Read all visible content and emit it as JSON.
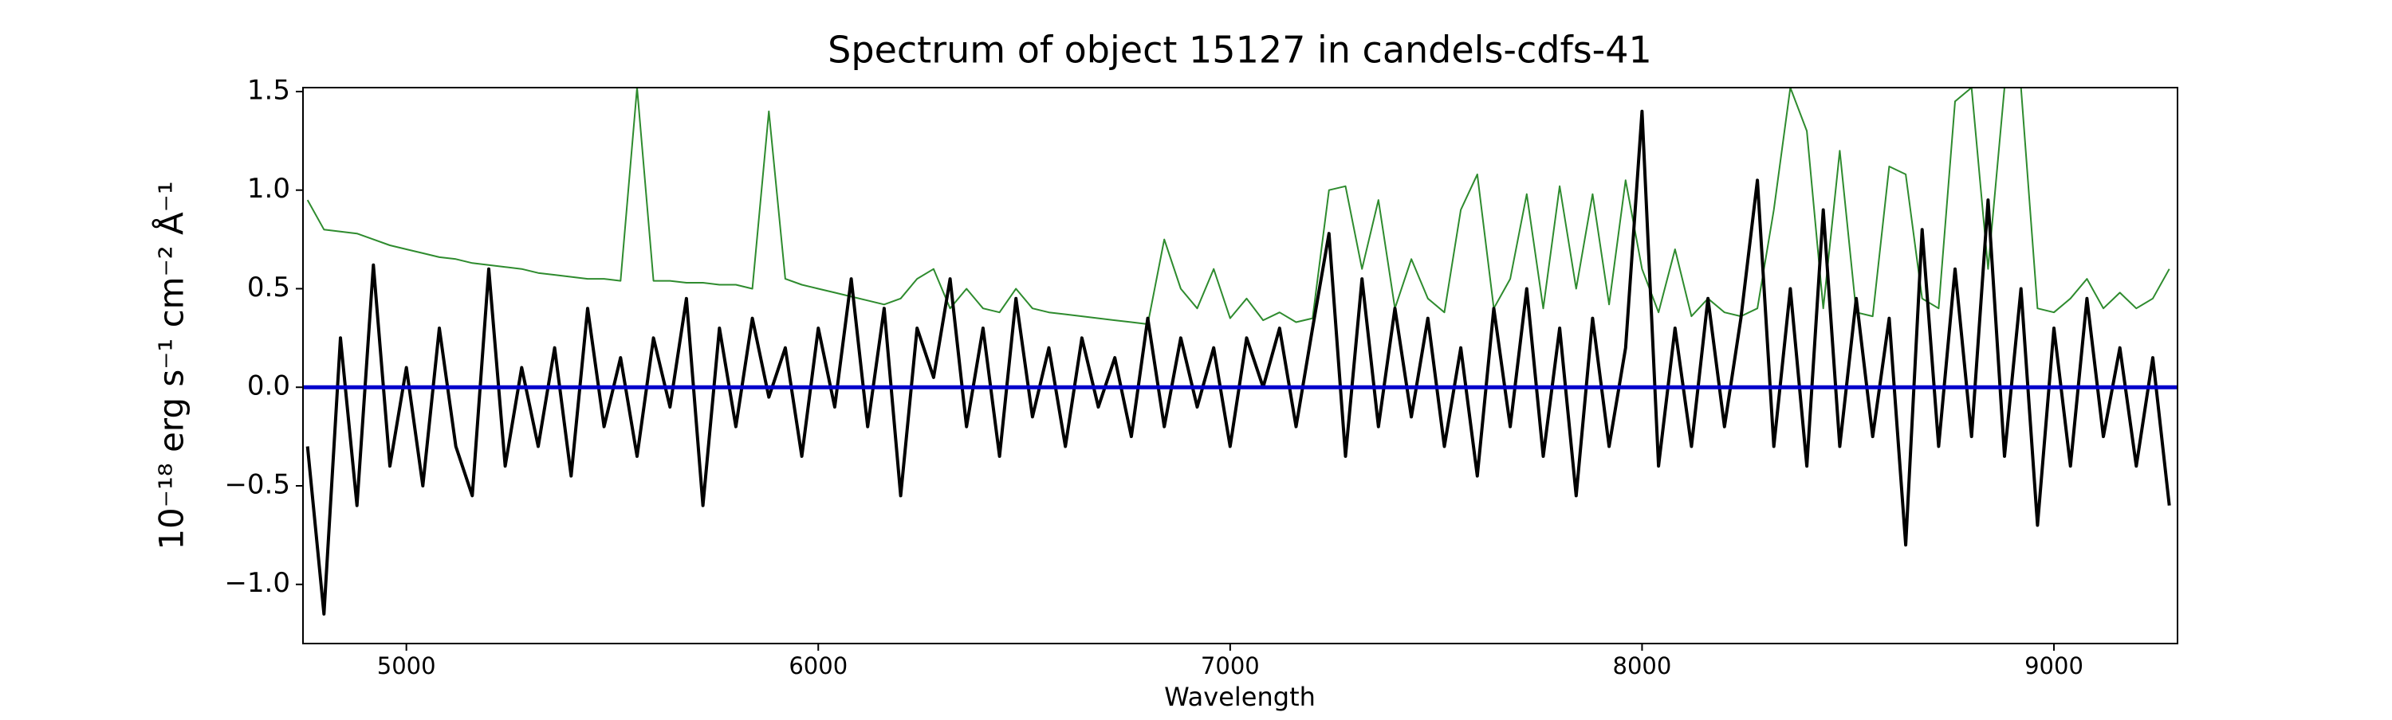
{
  "chart_data": {
    "type": "line",
    "title": "Spectrum of object 15127 in candels-cdfs-41",
    "xlabel": "Wavelength",
    "ylabel": "10⁻¹⁸ erg s⁻¹ cm⁻² Å⁻¹",
    "xlim": [
      4749,
      9300
    ],
    "ylim": [
      -1.3,
      1.52
    ],
    "xticks": [
      5000,
      6000,
      7000,
      8000,
      9000
    ],
    "yticks": [
      {
        "value": -1.0,
        "label": "−1.0"
      },
      {
        "value": -0.5,
        "label": "−0.5"
      },
      {
        "value": 0,
        "label": "0.0"
      },
      {
        "value": 0.5,
        "label": "0.5"
      },
      {
        "value": 1.0,
        "label": "1.0"
      },
      {
        "value": 1.5,
        "label": "1.5"
      }
    ],
    "x": [
      4760,
      4800,
      4840,
      4880,
      4920,
      4960,
      5000,
      5040,
      5080,
      5120,
      5160,
      5200,
      5240,
      5280,
      5320,
      5360,
      5400,
      5440,
      5480,
      5520,
      5560,
      5600,
      5640,
      5680,
      5720,
      5760,
      5800,
      5840,
      5880,
      5920,
      5960,
      6000,
      6040,
      6080,
      6120,
      6160,
      6200,
      6240,
      6280,
      6320,
      6360,
      6400,
      6440,
      6480,
      6520,
      6560,
      6600,
      6640,
      6680,
      6720,
      6760,
      6800,
      6840,
      6880,
      6920,
      6960,
      7000,
      7040,
      7080,
      7120,
      7160,
      7200,
      7240,
      7280,
      7320,
      7360,
      7400,
      7440,
      7480,
      7520,
      7560,
      7600,
      7640,
      7680,
      7720,
      7760,
      7800,
      7840,
      7880,
      7920,
      7960,
      8000,
      8040,
      8080,
      8120,
      8160,
      8200,
      8240,
      8280,
      8320,
      8360,
      8400,
      8440,
      8480,
      8520,
      8560,
      8600,
      8640,
      8680,
      8720,
      8760,
      8800,
      8840,
      8880,
      8920,
      8960,
      9000,
      9040,
      9080,
      9120,
      9160,
      9200,
      9240,
      9280
    ],
    "series": [
      {
        "color": "#2e8b2e",
        "width": 2,
        "values": [
          0.95,
          0.8,
          0.79,
          0.78,
          0.75,
          0.72,
          0.7,
          0.68,
          0.66,
          0.65,
          0.63,
          0.62,
          0.61,
          0.6,
          0.58,
          0.57,
          0.56,
          0.55,
          0.55,
          0.54,
          1.52,
          0.54,
          0.54,
          0.53,
          0.53,
          0.52,
          0.52,
          0.5,
          1.4,
          0.55,
          0.52,
          0.5,
          0.48,
          0.46,
          0.44,
          0.42,
          0.45,
          0.55,
          0.6,
          0.4,
          0.5,
          0.4,
          0.38,
          0.5,
          0.4,
          0.38,
          0.37,
          0.36,
          0.35,
          0.34,
          0.33,
          0.32,
          0.75,
          0.5,
          0.4,
          0.6,
          0.35,
          0.45,
          0.34,
          0.38,
          0.33,
          0.35,
          1.0,
          1.02,
          0.6,
          0.95,
          0.4,
          0.65,
          0.45,
          0.38,
          0.9,
          1.08,
          0.4,
          0.55,
          0.98,
          0.4,
          1.02,
          0.5,
          0.98,
          0.42,
          1.05,
          0.6,
          0.38,
          0.7,
          0.36,
          0.45,
          0.38,
          0.36,
          0.4,
          0.9,
          1.52,
          1.3,
          0.4,
          1.2,
          0.38,
          0.36,
          1.12,
          1.08,
          0.45,
          0.4,
          1.45,
          1.52,
          0.6,
          1.52,
          1.52,
          0.4,
          0.38,
          0.45,
          0.55,
          0.4,
          0.48,
          0.4,
          0.45,
          0.6
        ]
      },
      {
        "color": "#000000",
        "width": 4,
        "values": [
          -0.3,
          -1.15,
          0.25,
          -0.6,
          0.62,
          -0.4,
          0.1,
          -0.5,
          0.3,
          -0.3,
          -0.55,
          0.6,
          -0.4,
          0.1,
          -0.3,
          0.2,
          -0.45,
          0.4,
          -0.2,
          0.15,
          -0.35,
          0.25,
          -0.1,
          0.45,
          -0.6,
          0.3,
          -0.2,
          0.35,
          -0.05,
          0.2,
          -0.35,
          0.3,
          -0.1,
          0.55,
          -0.2,
          0.4,
          -0.55,
          0.3,
          0.05,
          0.55,
          -0.2,
          0.3,
          -0.35,
          0.45,
          -0.15,
          0.2,
          -0.3,
          0.25,
          -0.1,
          0.15,
          -0.25,
          0.35,
          -0.2,
          0.25,
          -0.1,
          0.2,
          -0.3,
          0.25,
          0.0,
          0.3,
          -0.2,
          0.3,
          0.78,
          -0.35,
          0.55,
          -0.2,
          0.4,
          -0.15,
          0.35,
          -0.3,
          0.2,
          -0.45,
          0.4,
          -0.2,
          0.5,
          -0.35,
          0.3,
          -0.55,
          0.35,
          -0.3,
          0.2,
          1.4,
          -0.4,
          0.3,
          -0.3,
          0.45,
          -0.2,
          0.35,
          1.05,
          -0.3,
          0.5,
          -0.4,
          0.9,
          -0.3,
          0.45,
          -0.25,
          0.35,
          -0.8,
          0.8,
          -0.3,
          0.6,
          -0.25,
          0.95,
          -0.35,
          0.5,
          -0.7,
          0.3,
          -0.4,
          0.45,
          -0.25,
          0.2,
          -0.4,
          0.15,
          -0.6
        ]
      },
      {
        "color": "#0000cc",
        "width": 5,
        "x": [
          4749,
          9300
        ],
        "values": [
          0,
          0
        ]
      }
    ]
  }
}
